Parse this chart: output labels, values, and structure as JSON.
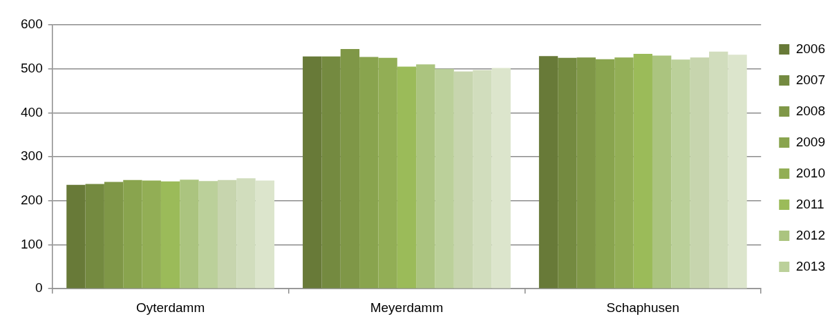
{
  "chart_data": {
    "type": "bar",
    "categories": [
      "Oyterdamm",
      "Meyerdamm",
      "Schaphusen"
    ],
    "series": [
      {
        "name": "2006",
        "color": "#687a38",
        "values": [
          236,
          528,
          529
        ]
      },
      {
        "name": "2007",
        "color": "#748a40",
        "values": [
          238,
          528,
          525
        ]
      },
      {
        "name": "2008",
        "color": "#7f9747",
        "values": [
          243,
          545,
          526
        ]
      },
      {
        "name": "2009",
        "color": "#89a44e",
        "values": [
          247,
          527,
          522
        ]
      },
      {
        "name": "2010",
        "color": "#92ae55",
        "values": [
          246,
          525,
          526
        ]
      },
      {
        "name": "2011",
        "color": "#9bbb59",
        "values": [
          244,
          505,
          534
        ]
      },
      {
        "name": "2012",
        "color": "#abc47f",
        "values": [
          248,
          510,
          530
        ]
      },
      {
        "name": "2013",
        "color": "#bbd09a",
        "values": [
          245,
          500,
          521
        ]
      },
      {
        "color": "#c7d5ae",
        "values": [
          247,
          494,
          526
        ]
      },
      {
        "color": "#d1ddbd",
        "values": [
          251,
          497,
          539
        ]
      },
      {
        "color": "#dce5cc",
        "values": [
          246,
          502,
          532
        ]
      }
    ],
    "ylim": [
      0,
      600
    ],
    "yticks": [
      0,
      100,
      200,
      300,
      400,
      500,
      600
    ],
    "grid": "y",
    "legend": "right"
  }
}
